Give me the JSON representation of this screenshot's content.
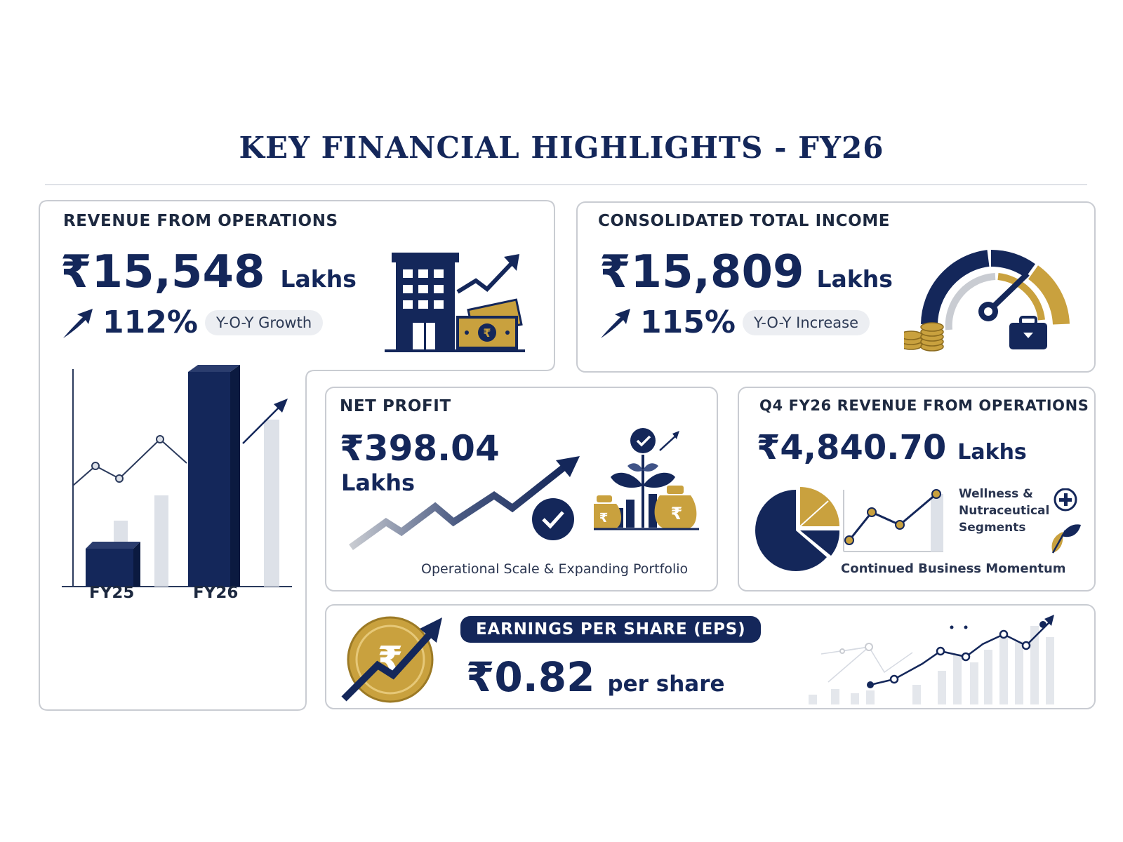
{
  "page": {
    "title": "KEY FINANCIAL HIGHLIGHTS - FY26"
  },
  "colors": {
    "navy": "#14275a",
    "gold": "#c9a13e",
    "light_gray": "#dde1e8",
    "text_dark": "#1d2940"
  },
  "revenue": {
    "title": "REVENUE FROM OPERATIONS",
    "value": "₹15,548",
    "unit": "Lakhs",
    "growth": "112%",
    "growth_label": "Y-O-Y Growth",
    "icon": "building-with-growth-arrow-icon",
    "chart": {
      "categories": [
        "FY25",
        "FY26"
      ]
    }
  },
  "income": {
    "title": "CONSOLIDATED TOTAL INCOME",
    "value": "₹15,809",
    "unit": "Lakhs",
    "growth": "115%",
    "growth_label": "Y-O-Y Increase",
    "icon": "speedometer-gauge-icon"
  },
  "net_profit": {
    "title": "NET PROFIT",
    "value": "₹398.04",
    "unit": "Lakhs",
    "caption": "Operational Scale & Expanding Portfolio",
    "icon": "money-bags-plant-icon"
  },
  "q4": {
    "title": "Q4 FY26 REVENUE FROM OPERATIONS",
    "value": "₹4,840.70",
    "unit": "Lakhs",
    "segment_line1": "Wellness &",
    "segment_line2": "Nutraceutical",
    "segment_line3": "Segments",
    "caption": "Continued Business Momentum",
    "icon": "pie-chart-icon"
  },
  "eps": {
    "badge": "EARNINGS PER SHARE (EPS)",
    "value": "₹0.82",
    "unit": "per share",
    "icon": "rupee-coin-icon"
  }
}
